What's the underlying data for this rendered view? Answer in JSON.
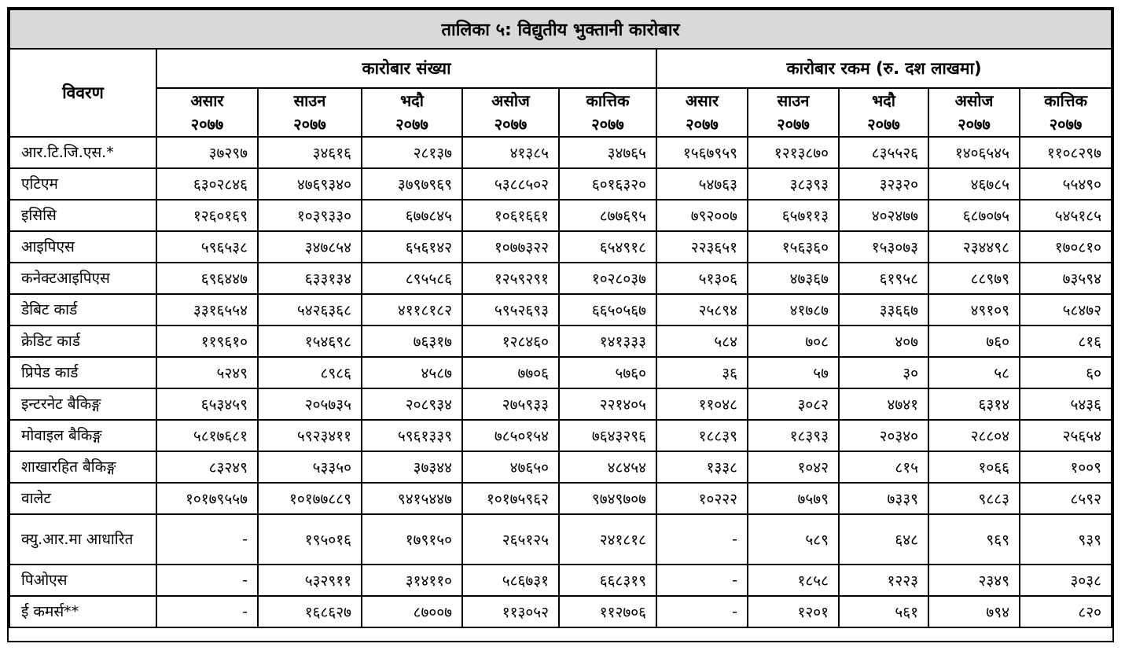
{
  "title": "तालिका ५: विद्युतीय भुक्तानी कारोबार",
  "description_header": "विवरण",
  "groups": [
    "कारोबार संख्या",
    "कारोबार रकम (रु. दश लाखमा)"
  ],
  "months": [
    {
      "name": "असार",
      "year": "२०७७"
    },
    {
      "name": "साउन",
      "year": "२०७७"
    },
    {
      "name": "भदौ",
      "year": "२०७७"
    },
    {
      "name": "असोज",
      "year": "२०७७"
    },
    {
      "name": "कात्तिक",
      "year": "२०७७"
    },
    {
      "name": "असार",
      "year": "२०७७"
    },
    {
      "name": "साउन",
      "year": "२०७७"
    },
    {
      "name": "भदौ",
      "year": "२०७७"
    },
    {
      "name": "असोज",
      "year": "२०७७"
    },
    {
      "name": "कात्तिक",
      "year": "२०७७"
    }
  ],
  "rows": [
    {
      "label": "आर.टि.जि.एस.*",
      "values": [
        "३७२९७",
        "३४६१६",
        "२८१३७",
        "४१३८५",
        "३४७६५",
        "१५६७९५९",
        "१२१३८७०",
        "८३५५२६",
        "१४०६५४५",
        "११०८२९७"
      ]
    },
    {
      "label": "एटिएम",
      "values": [
        "६३०२८४६",
        "४७६९३४०",
        "३७९७९६९",
        "५३८८५०२",
        "६०१६३२०",
        "५४७६३",
        "३८३९३",
        "३२३२०",
        "४६७८५",
        "५५४९०"
      ]
    },
    {
      "label": "इसिसि",
      "values": [
        "१२६०१६९",
        "१०३९३३०",
        "६७७८४५",
        "१०६१६६१",
        "८७७६९५",
        "७९२००७",
        "६५७११३",
        "४०२४७७",
        "६८७०७५",
        "५४५१८५"
      ]
    },
    {
      "label": "आइपिएस",
      "values": [
        "५९६५३८",
        "३४७८५४",
        "६५६१४२",
        "१०७७३२२",
        "६५४९१८",
        "२२३६५१",
        "१५६३६०",
        "१५३०७३",
        "२३४४९८",
        "१७०८१०"
      ]
    },
    {
      "label": "कनेक्टआइपिएस",
      "values": [
        "६९६४४७",
        "६३३१३४",
        "८९५५८६",
        "१२५९२९१",
        "१०२८०३७",
        "५१३०६",
        "४७३६७",
        "६१९५८",
        "८८९७९",
        "७३५९४"
      ]
    },
    {
      "label": "डेबिट कार्ड",
      "values": [
        "३३१६५५४",
        "५४२६३६८",
        "४११८१८२",
        "५९५२६९३",
        "६६५०५६७",
        "२५८९४",
        "४१७८७",
        "३३६६७",
        "४९१०९",
        "५८४७२"
      ]
    },
    {
      "label": "क्रेडिट कार्ड",
      "values": [
        "११९६१०",
        "१५४६९८",
        "७६३१७",
        "१२८४६०",
        "१४१३३३",
        "५८४",
        "७०८",
        "४०७",
        "७६०",
        "८१६"
      ]
    },
    {
      "label": "प्रिपेड कार्ड",
      "values": [
        "५२४९",
        "८९८६",
        "४५८७",
        "७७०६",
        "५७६०",
        "३६",
        "५७",
        "३०",
        "५८",
        "६०"
      ]
    },
    {
      "label": "इन्टरनेट बैकिङ्ग",
      "values": [
        "६५३४५९",
        "२०५७३५",
        "२०८९३४",
        "२७५९३३",
        "२२१४०५",
        "११०४८",
        "३०८२",
        "४७४१",
        "६३१४",
        "५४३६"
      ]
    },
    {
      "label": "मोवाइल बैकिङ्ग",
      "values": [
        "५८१७६८१",
        "५९२३४११",
        "५९६१३३९",
        "७८५०१५४",
        "७६४३२९६",
        "१८८३९",
        "१८३९३",
        "२०३४०",
        "२८८०४",
        "२५६५४"
      ]
    },
    {
      "label": "शाखारहित बैकिङ्ग",
      "values": [
        "८३२४९",
        "५३३५०",
        "३७३४४",
        "४७६५०",
        "४८४५४",
        "१३३८",
        "१०४२",
        "८१५",
        "१०६६",
        "१००९"
      ]
    },
    {
      "label": "वालेट",
      "values": [
        "१०१७९५५७",
        "१०१७७८८९",
        "९४१५४४७",
        "१०१७५९६२",
        "९७४९७०७",
        "१०२२२",
        "७५७९",
        "७३३९",
        "९८८३",
        "८५९२"
      ]
    },
    {
      "label": "क्यु.आर.मा आधारित",
      "tall": true,
      "values": [
        "-",
        "१९५०१६",
        "१७९१५०",
        "२६५१२५",
        "२४१८१८",
        "-",
        "५८९",
        "६४८",
        "९६९",
        "९३९"
      ]
    },
    {
      "label": "पिओएस",
      "values": [
        "-",
        "५३२९११",
        "३१४११०",
        "५८६७३१",
        "६६८३१९",
        "-",
        "१८५८",
        "१२२३",
        "२३४९",
        "३०३८"
      ]
    },
    {
      "label": "ई कमर्स**",
      "values": [
        "-",
        "१६८६२७",
        "८७००७",
        "११३०५२",
        "११२७०६",
        "-",
        "१२०१",
        "५६१",
        "७९४",
        "८२०"
      ]
    }
  ]
}
